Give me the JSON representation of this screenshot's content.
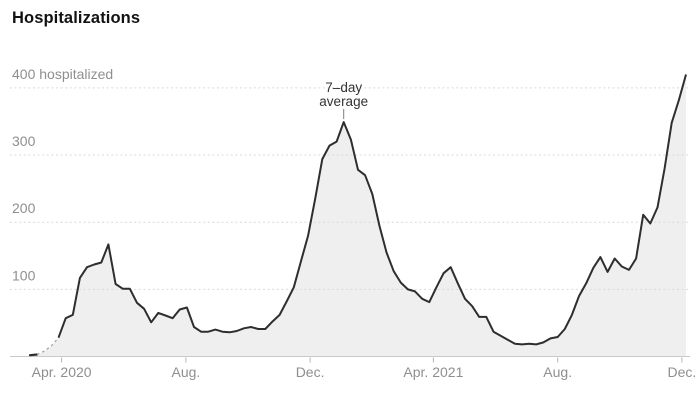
{
  "chart_data": {
    "type": "area",
    "title": "Hospitalizations",
    "ylabel_unit": "hospitalized",
    "ylim": [
      0,
      420
    ],
    "grid": true,
    "series": {
      "name": "7–day average",
      "start_date": "2020-03-01",
      "step_days": 7,
      "values": [
        2,
        3,
        8,
        16,
        28,
        57,
        62,
        117,
        133,
        137,
        140,
        167,
        108,
        101,
        101,
        80,
        71,
        51,
        65,
        61,
        57,
        70,
        73,
        44,
        37,
        37,
        40,
        37,
        36,
        38,
        42,
        44,
        41,
        41,
        52,
        62,
        82,
        103,
        142,
        180,
        235,
        294,
        314,
        320,
        349,
        323,
        278,
        270,
        242,
        195,
        155,
        127,
        110,
        100,
        97,
        86,
        81,
        103,
        124,
        133,
        109,
        86,
        75,
        59,
        59,
        37,
        31,
        25,
        19,
        18,
        19,
        18,
        21,
        27,
        29,
        41,
        62,
        90,
        109,
        132,
        148,
        126,
        146,
        134,
        129,
        146,
        211,
        198,
        222,
        280,
        348,
        382,
        420
      ]
    },
    "dashed_intro_range": [
      1,
      4
    ],
    "yticks": [
      {
        "label": "100",
        "value": 100
      },
      {
        "label": "200",
        "value": 200
      },
      {
        "label": "300",
        "value": 300
      },
      {
        "label": "400 hospitalized",
        "value": 400
      }
    ],
    "xticks": [
      {
        "label": "Apr. 2020",
        "day": 31
      },
      {
        "label": "Aug.",
        "day": 153
      },
      {
        "label": "Dec.",
        "day": 275
      },
      {
        "label": "Apr. 2021",
        "day": 396
      },
      {
        "label": "Aug.",
        "day": 518
      },
      {
        "label": "Dec.",
        "day": 640
      }
    ],
    "annotation": {
      "line1": "7–day",
      "line2": "average",
      "day": 308,
      "value": 349
    },
    "colors": {
      "line": "#2e2e2e",
      "fill": "#efefef",
      "grid": "#d9d9d9",
      "baseline": "#c9c9c9",
      "tick": "#b5b5b5",
      "axis_text": "#8f8f8f",
      "title_text": "#121212",
      "annotation_text": "#333333",
      "annotation_line": "#7d7d7d",
      "dashed_intro": "#aaaaaa"
    }
  }
}
